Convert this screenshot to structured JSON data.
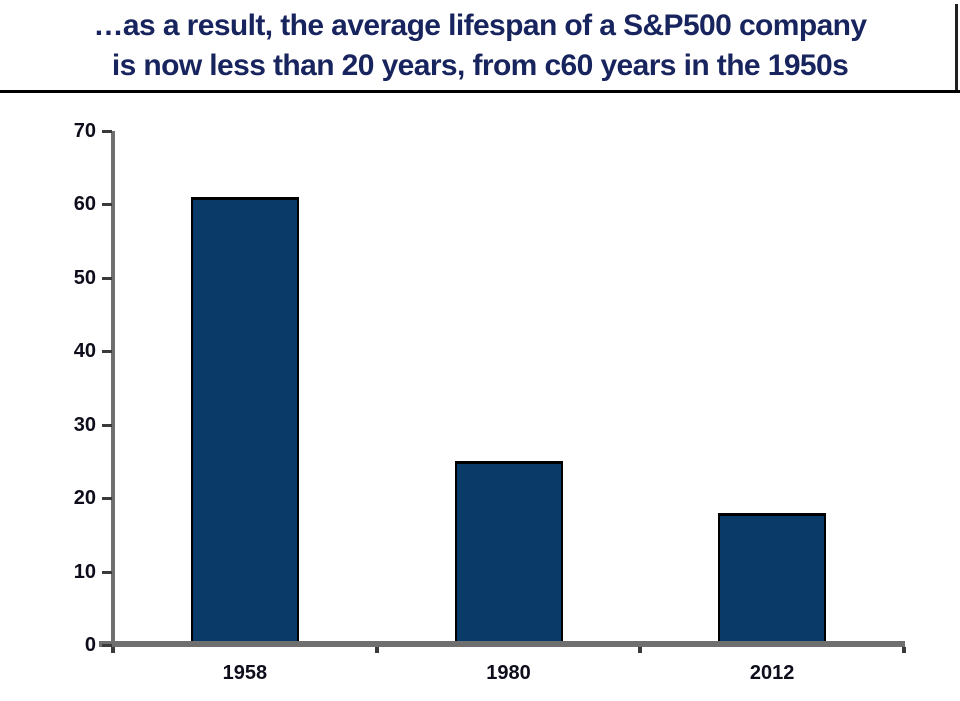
{
  "title": {
    "line1": "…as a result, the average lifespan of a S&P500 company",
    "line2": "is now less than 20 years, from c60 years in the 1950s"
  },
  "colors": {
    "title_text": "#18245e",
    "separator": "#000000",
    "bar_fill": "#0a3a68",
    "bar_border": "#000000",
    "axis_line": "#6f6f6f",
    "tick_mark": "#3a3a3a",
    "tick_label": "#0d0d1c",
    "edge_artifact": "#1f1f1f",
    "background": "#ffffff"
  },
  "chart_data": {
    "type": "bar",
    "categories": [
      "1958",
      "1980",
      "2012"
    ],
    "values": [
      61,
      25,
      18
    ],
    "title": "…as a result, the average lifespan of a S&P500 company is now less than 20 years, from c60 years in the 1950s",
    "xlabel": "",
    "ylabel": "",
    "ylim": [
      0,
      70
    ],
    "ytick_step": 10,
    "ytick_labels": [
      "0",
      "10",
      "20",
      "30",
      "40",
      "50",
      "60",
      "70"
    ],
    "grid": false,
    "legend": false,
    "bar_count": 3
  }
}
